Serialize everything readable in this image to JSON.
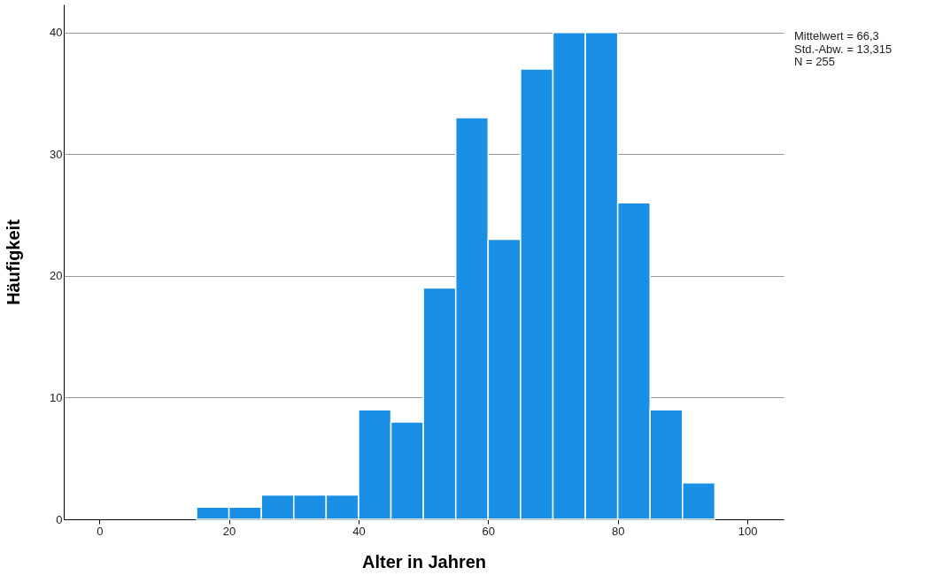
{
  "chart_data": {
    "type": "histogram",
    "xlabel": "Alter in Jahren",
    "ylabel": "Häufigkeit",
    "bins": [
      15,
      20,
      25,
      30,
      35,
      40,
      45,
      50,
      55,
      60,
      65,
      70,
      75,
      80,
      85,
      90,
      95
    ],
    "values": [
      1,
      1,
      2,
      2,
      2,
      9,
      8,
      19,
      33,
      23,
      37,
      40,
      40,
      26,
      9,
      3
    ],
    "color": "#1a8fe6",
    "xlim": [
      -5.5,
      105.6
    ],
    "ylim": [
      0,
      42.3
    ],
    "xticks": [
      0,
      20,
      40,
      60,
      80,
      100
    ],
    "yticks": [
      0,
      10,
      20,
      30,
      40
    ],
    "grid": "y",
    "annotations": [
      "Mittelwert = 66,3",
      "Std.-Abw. = 13,315",
      "N = 255"
    ]
  }
}
